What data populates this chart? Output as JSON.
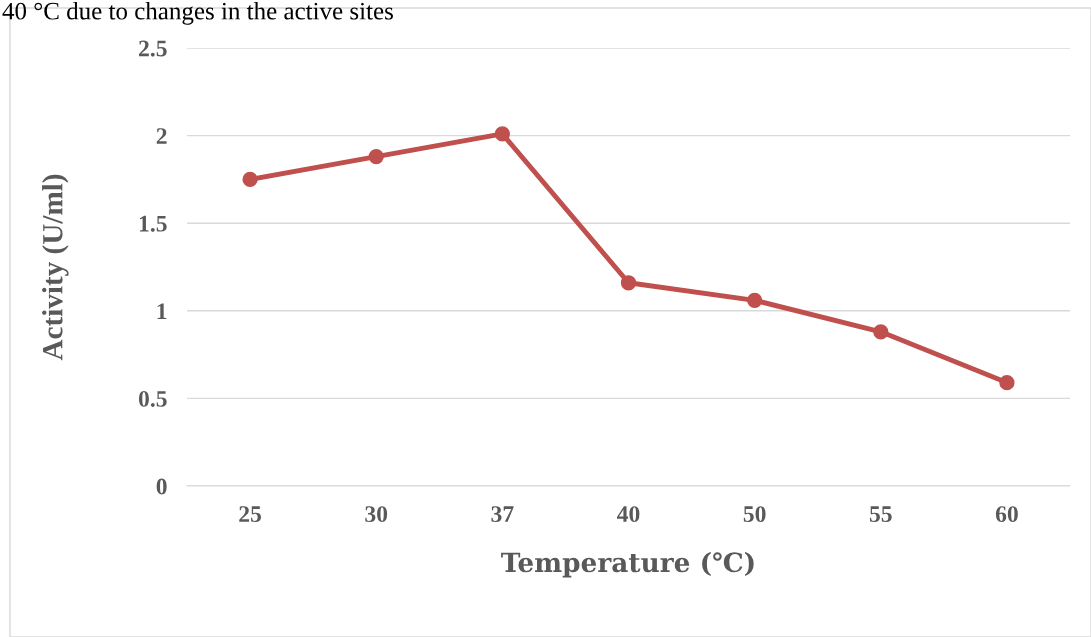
{
  "chart_data": {
    "type": "line",
    "xlabel": "Temperature (℃)",
    "ylabel": "Activity (U/ml)",
    "annotations": [
      "40 °C due to changes in the active sites"
    ],
    "categories": [
      "25",
      "30",
      "37",
      "40",
      "50",
      "55",
      "60"
    ],
    "series": [
      {
        "color": "#c0504d",
        "values": [
          1.75,
          1.88,
          2.01,
          1.16,
          1.06,
          0.88,
          0.59
        ]
      }
    ],
    "ylim": [
      0,
      2.5
    ],
    "yticks": [
      0,
      0.5,
      1,
      1.5,
      2,
      2.5
    ],
    "grid": "y",
    "marker": "circle",
    "line_style": "solid",
    "legend": false
  }
}
